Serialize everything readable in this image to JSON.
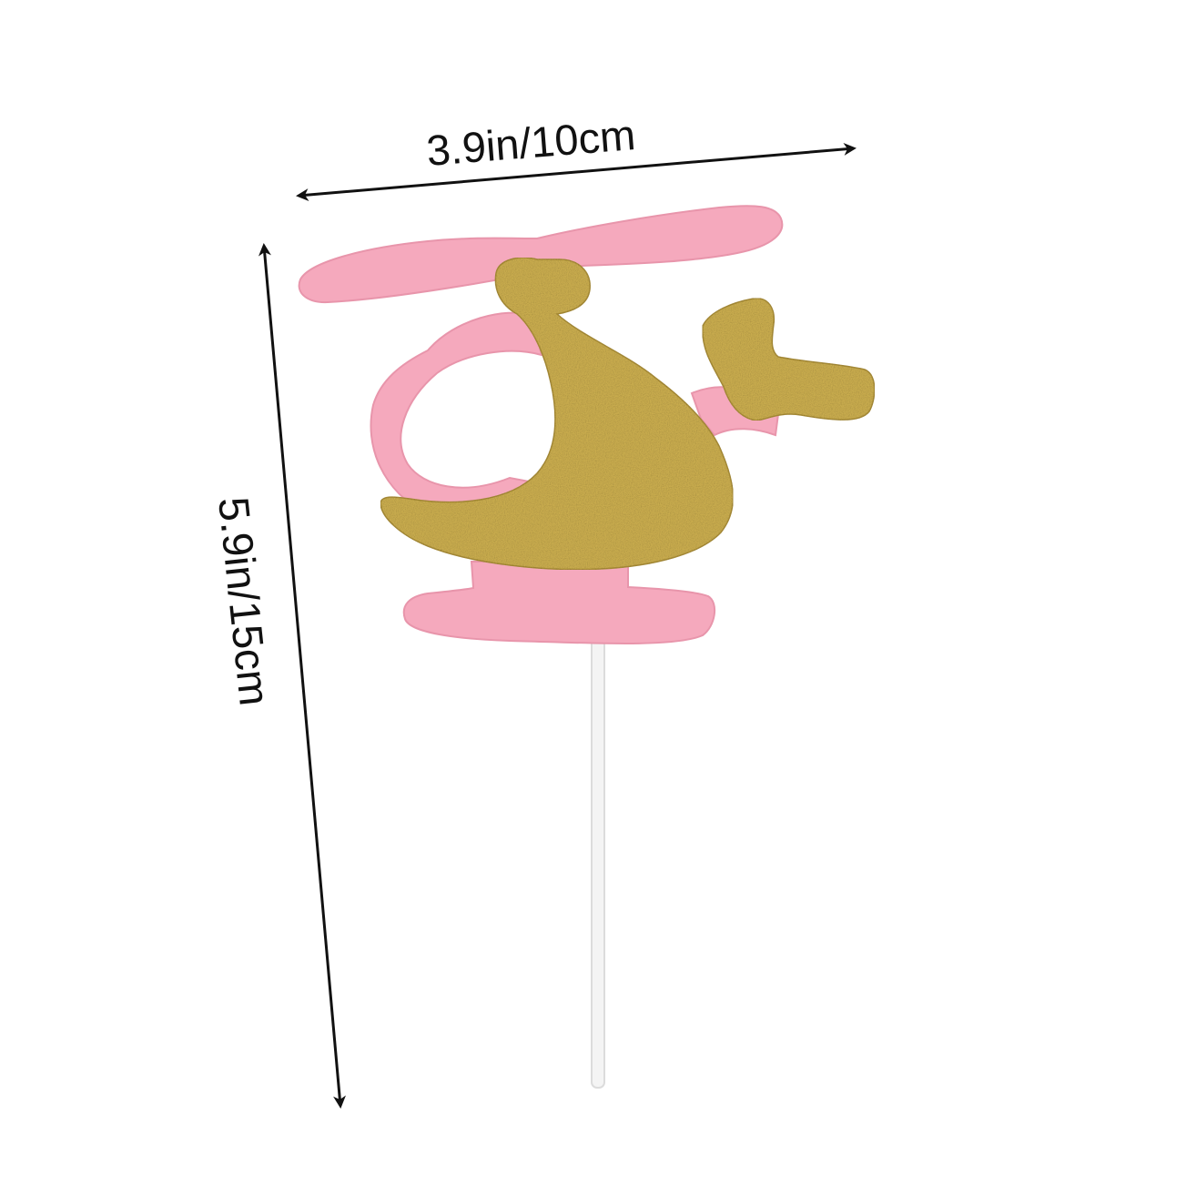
{
  "dimensions": {
    "width_label": "3.9in/10cm",
    "height_label": "5.9in/15cm"
  },
  "colors": {
    "pink": "#f5a9bd",
    "pink_edge": "#e895ab",
    "gold": "#c9ac4e",
    "gold_dark": "#a88c36",
    "stick": "#f4f4f4",
    "stick_edge": "#dcdcdc",
    "arrow": "#111111"
  },
  "icons": {
    "product": "helicopter-cake-topper-icon"
  }
}
